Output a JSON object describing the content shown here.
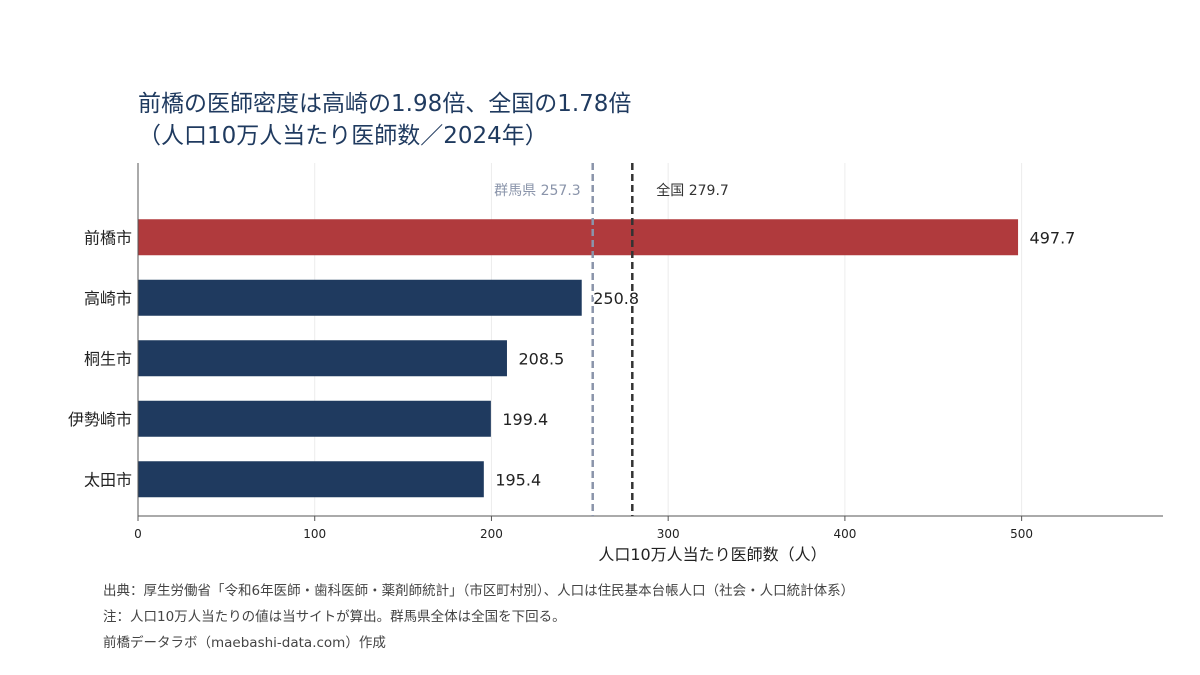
{
  "title": {
    "line1": "前橋の医師密度は高崎の1.98倍、全国の1.78倍",
    "line2": "（人口10万人当たり医師数／2024年）"
  },
  "chart_data": {
    "type": "bar",
    "orientation": "horizontal",
    "categories": [
      "前橋市",
      "高崎市",
      "桐生市",
      "伊勢崎市",
      "太田市"
    ],
    "values": [
      497.7,
      250.8,
      208.5,
      199.4,
      195.4
    ],
    "value_labels": [
      "497.7",
      "250.8",
      "208.5",
      "199.4",
      "195.4"
    ],
    "bar_colors": [
      "#b03a3d",
      "#1f3a5f",
      "#1f3a5f",
      "#1f3a5f",
      "#1f3a5f"
    ],
    "xlabel": "人口10万人当たり医師数（人）",
    "ylabel": "",
    "xlim": [
      0,
      580
    ],
    "xticks": [
      0,
      100,
      200,
      300,
      400,
      500
    ],
    "grid": "vertical",
    "reference_lines": [
      {
        "value": 257.3,
        "label": "群馬県 257.3",
        "color": "#8a94aa",
        "style": "dashed"
      },
      {
        "value": 279.7,
        "label": "全国 279.7",
        "color": "#333333",
        "style": "dashed"
      }
    ]
  },
  "footer": {
    "source": "出典：厚生労働省「令和6年医師・歯科医師・薬剤師統計」（市区町村別）、人口は住民基本台帳人口（社会・人口統計体系）",
    "note": "注：人口10万人当たりの値は当サイトが算出。群馬県全体は全国を下回る。",
    "credit": "前橋データラボ（maebashi-data.com）作成"
  }
}
